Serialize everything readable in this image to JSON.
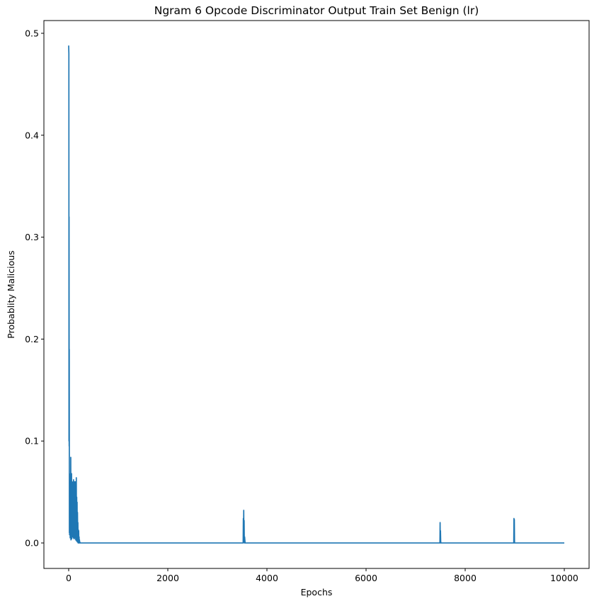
{
  "chart_data": {
    "type": "line",
    "title": "Ngram 6 Opcode Discriminator Output Train Set Benign (lr)",
    "xlabel": "Epochs",
    "ylabel": "Probablity Malicious",
    "xlim": [
      -500,
      10500
    ],
    "ylim": [
      -0.025,
      0.5125
    ],
    "xticks": [
      0,
      2000,
      4000,
      6000,
      8000,
      10000
    ],
    "xtick_labels": [
      "0",
      "2000",
      "4000",
      "6000",
      "8000",
      "10000"
    ],
    "yticks": [
      0.0,
      0.1,
      0.2,
      0.3,
      0.4,
      0.5
    ],
    "ytick_labels": [
      "0.0",
      "0.1",
      "0.2",
      "0.3",
      "0.4",
      "0.5"
    ],
    "grid": false,
    "series": [
      {
        "color": "#1f77b4",
        "x": [
          0,
          4,
          6,
          8,
          10,
          12,
          14,
          16,
          18,
          20,
          22,
          24,
          26,
          28,
          30,
          34,
          38,
          42,
          46,
          50,
          54,
          58,
          62,
          66,
          70,
          74,
          78,
          82,
          86,
          90,
          94,
          98,
          102,
          106,
          110,
          114,
          118,
          122,
          126,
          130,
          134,
          138,
          142,
          146,
          150,
          154,
          158,
          162,
          166,
          170,
          174,
          178,
          182,
          186,
          190,
          194,
          198,
          202,
          206,
          210,
          214,
          218,
          222,
          226,
          230,
          240,
          3500,
          3520,
          3524,
          3528,
          3532,
          3536,
          3540,
          3544,
          3550,
          3560,
          7480,
          7490,
          7494,
          7498,
          7502,
          7506,
          7510,
          7520,
          8970,
          8980,
          8984,
          8988,
          8992,
          8996,
          9000,
          9010,
          10000
        ],
        "y": [
          0.488,
          0.48,
          0.1,
          0.32,
          0.095,
          0.19,
          0.01,
          0.068,
          0.008,
          0.055,
          0.01,
          0.06,
          0.02,
          0.04,
          0.005,
          0.06,
          0.015,
          0.084,
          0.003,
          0.06,
          0.01,
          0.068,
          0.004,
          0.06,
          0.02,
          0.058,
          0.006,
          0.05,
          0.01,
          0.06,
          0.005,
          0.062,
          0.01,
          0.055,
          0.004,
          0.06,
          0.015,
          0.058,
          0.005,
          0.06,
          0.01,
          0.052,
          0.003,
          0.06,
          0.012,
          0.064,
          0.002,
          0.045,
          0.01,
          0.04,
          0.001,
          0.03,
          0.008,
          0.02,
          0.0,
          0.013,
          0.002,
          0.012,
          0.0,
          0.006,
          0.0,
          0.003,
          0.0,
          0.001,
          0.0,
          0.0,
          0.0,
          0.0,
          0.024,
          0.002,
          0.032,
          0.004,
          0.022,
          0.0,
          0.006,
          0.0,
          0.0,
          0.0,
          0.02,
          0.0,
          0.012,
          0.002,
          0.0,
          0.0,
          0.0,
          0.0,
          0.024,
          0.0,
          0.023,
          0.0,
          0.0,
          0.0,
          0.0
        ]
      }
    ]
  }
}
